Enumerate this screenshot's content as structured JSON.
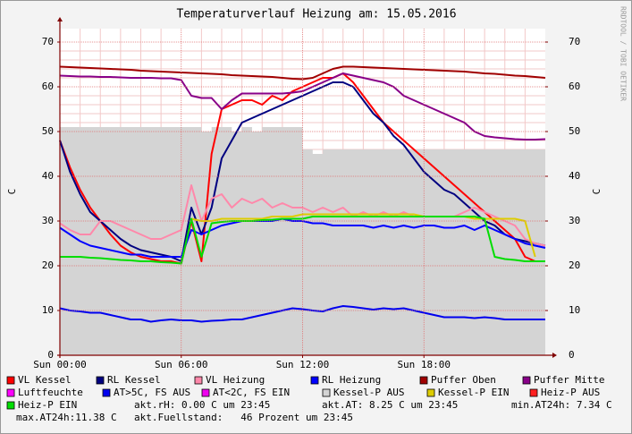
{
  "chart_data": {
    "type": "line",
    "title": "Temperaturverlauf Heizung am: 15.05.2016",
    "y_label": "C",
    "y2_label": "C",
    "watermark": "RRDTOOL / TOBI OETIKER",
    "xlim": [
      0,
      24
    ],
    "xticks": [
      {
        "value": 0,
        "label": "Sun 00:00"
      },
      {
        "value": 6,
        "label": "Sun 06:00"
      },
      {
        "value": 12,
        "label": "Sun 12:00"
      },
      {
        "value": 18,
        "label": "Sun 18:00"
      }
    ],
    "ylim": [
      0,
      73
    ],
    "yticks": [
      0,
      10,
      20,
      30,
      40,
      50,
      60,
      70
    ],
    "y2lim": [
      0,
      73
    ],
    "y2ticks": [
      0,
      10,
      20,
      30,
      40,
      50,
      60,
      70
    ],
    "grid": true,
    "x": [
      0,
      0.5,
      1,
      1.5,
      2,
      2.5,
      3,
      3.5,
      4,
      4.5,
      5,
      5.5,
      6,
      6.5,
      7,
      7.5,
      8,
      8.5,
      9,
      9.5,
      10,
      10.5,
      11,
      11.5,
      12,
      12.5,
      13,
      13.5,
      14,
      14.5,
      15,
      15.5,
      16,
      16.5,
      17,
      17.5,
      18,
      18.5,
      19,
      19.5,
      20,
      20.5,
      21,
      21.5,
      22,
      22.5,
      23,
      23.5,
      24
    ],
    "series": [
      {
        "name": "VL Kessel",
        "color": "#ff0000",
        "values": [
          48,
          42,
          37,
          33,
          30,
          27,
          24.5,
          23,
          22,
          21.5,
          21,
          21,
          20.5,
          30,
          21,
          45,
          55,
          56,
          57,
          57,
          56,
          58,
          57,
          59,
          60,
          61,
          62,
          62,
          63,
          61,
          58,
          55,
          52,
          50,
          48,
          46,
          44,
          42,
          40,
          38,
          36,
          34,
          32,
          30,
          28,
          26,
          22,
          21,
          21
        ]
      },
      {
        "name": "RL Kessel",
        "color": "#000080",
        "values": [
          48,
          41,
          36,
          32,
          30,
          28,
          26,
          24.5,
          23.5,
          23,
          22.5,
          22,
          21,
          33,
          27,
          33,
          44,
          48,
          52,
          53,
          54,
          55,
          56,
          57,
          58,
          59,
          60,
          61,
          61,
          60,
          57,
          54,
          52,
          49,
          47,
          44,
          41,
          39,
          37,
          36,
          34,
          32,
          30,
          29,
          27,
          26,
          25.5,
          25,
          24.5
        ]
      },
      {
        "name": "VL Heizung",
        "color": "#ff88aa",
        "values": [
          29.5,
          28,
          27,
          27,
          30,
          30,
          29,
          28,
          27,
          26,
          26,
          27,
          28,
          38,
          30,
          35,
          36,
          33,
          35,
          34,
          35,
          33,
          34,
          33,
          33,
          32,
          33,
          32,
          33,
          31,
          32,
          31,
          32,
          31,
          32,
          31,
          31,
          31,
          31,
          31,
          32,
          33,
          32,
          31,
          30,
          29,
          26,
          25,
          24.5
        ]
      },
      {
        "name": "RL Heizung",
        "color": "#0000ff",
        "values": [
          28.5,
          27,
          25.5,
          24.5,
          24,
          23.5,
          23,
          22.5,
          22.5,
          22,
          22,
          22,
          22,
          28,
          27,
          28,
          29,
          29.5,
          30,
          30,
          30,
          30,
          30.5,
          30,
          30,
          29.5,
          29.5,
          29,
          29,
          29,
          29,
          28.5,
          29,
          28.5,
          29,
          28.5,
          29,
          29,
          28.5,
          28.5,
          29,
          28,
          29,
          28,
          27,
          26,
          25,
          24.5,
          24
        ]
      },
      {
        "name": "Puffer Oben",
        "color": "#a00000",
        "values": [
          64.5,
          64.4,
          64.3,
          64.2,
          64.1,
          64,
          63.9,
          63.8,
          63.6,
          63.5,
          63.4,
          63.3,
          63.2,
          63.1,
          63,
          62.9,
          62.8,
          62.6,
          62.5,
          62.4,
          62.3,
          62.2,
          62,
          61.8,
          61.7,
          62,
          63,
          64,
          64.5,
          64.5,
          64.4,
          64.3,
          64.2,
          64.1,
          64,
          63.9,
          63.8,
          63.7,
          63.6,
          63.5,
          63.4,
          63.2,
          63,
          62.9,
          62.7,
          62.5,
          62.4,
          62.2,
          62
        ]
      },
      {
        "name": "Puffer Mitte",
        "color": "#880088",
        "values": [
          62.5,
          62.4,
          62.3,
          62.3,
          62.2,
          62.2,
          62.1,
          62,
          62,
          62,
          61.9,
          61.9,
          61.5,
          58,
          57.5,
          57.5,
          55,
          57,
          58.5,
          58.5,
          58.5,
          58.5,
          58.5,
          58.7,
          59,
          60,
          61,
          62,
          63,
          62.5,
          62,
          61.5,
          61,
          60,
          58,
          57,
          56,
          55,
          54,
          53,
          52,
          50,
          49,
          48.7,
          48.5,
          48.3,
          48.2,
          48.2,
          48.3
        ]
      },
      {
        "name": "Luftfeuchte",
        "color": "#ff00ff",
        "values": [
          null,
          null,
          null,
          null,
          null,
          null,
          null,
          null,
          null,
          null,
          null,
          null,
          null,
          null,
          null,
          null,
          null,
          null,
          null,
          null,
          null,
          null,
          null,
          null,
          null,
          null,
          null,
          null,
          null,
          null,
          null,
          null,
          null,
          null,
          null,
          null,
          null,
          null,
          null,
          null,
          null,
          null,
          null,
          null,
          null,
          null,
          null,
          null,
          null
        ]
      },
      {
        "name": "AT>5C, FS AUS",
        "color": "#0000ee",
        "values": [
          10.5,
          10,
          9.8,
          9.5,
          9.5,
          9,
          8.5,
          8,
          8,
          7.5,
          7.8,
          8,
          7.8,
          7.8,
          7.5,
          7.7,
          7.8,
          8,
          8,
          8.5,
          9,
          9.5,
          10,
          10.5,
          10.3,
          10,
          9.8,
          10.5,
          11,
          10.8,
          10.5,
          10.2,
          10.5,
          10.3,
          10.5,
          10,
          9.5,
          9,
          8.5,
          8.5,
          8.5,
          8.3,
          8.5,
          8.3,
          8,
          8,
          8,
          8,
          8
        ]
      },
      {
        "name": "AT<2C, FS EIN",
        "color": "#ee00ee",
        "values": [
          null,
          null,
          null,
          null,
          null,
          null,
          null,
          null,
          null,
          null,
          null,
          null,
          null,
          null,
          null,
          null,
          null,
          null,
          null,
          null,
          null,
          null,
          null,
          null,
          null,
          null,
          null,
          null,
          null,
          null,
          null,
          null,
          null,
          null,
          null,
          null,
          null,
          null,
          null,
          null,
          null,
          null,
          null,
          null,
          null,
          null,
          null,
          null,
          null
        ]
      },
      {
        "name": "Kessel-P AUS",
        "color": "#d4d4d4",
        "style": "area",
        "values": [
          51,
          51,
          51,
          51,
          51,
          51,
          51,
          51,
          51,
          51,
          51,
          51,
          51,
          51,
          50,
          51,
          51,
          50,
          51,
          50,
          51,
          51,
          51,
          51,
          46,
          45,
          46,
          46,
          46,
          46,
          46,
          46,
          46,
          46,
          46,
          46,
          46,
          46,
          46,
          46,
          46,
          46,
          46,
          46,
          46,
          46,
          46,
          46,
          46
        ]
      },
      {
        "name": "Kessel-P EIN",
        "color": "#ddcc00",
        "values": [
          null,
          null,
          null,
          null,
          null,
          null,
          null,
          null,
          null,
          null,
          null,
          null,
          null,
          30.5,
          30,
          30,
          30.5,
          30.5,
          30.5,
          30.5,
          30.5,
          31,
          31,
          31,
          31.5,
          31.5,
          31.5,
          31.5,
          31.5,
          31.5,
          31.5,
          31.5,
          31.5,
          31.5,
          31.5,
          31.5,
          31,
          31,
          31,
          31,
          31,
          30.5,
          30.5,
          30.5,
          30.5,
          30.5,
          30,
          22,
          null
        ]
      },
      {
        "name": "Heiz-P AUS",
        "color": "#ff2020",
        "values": [
          null,
          null,
          null,
          null,
          null,
          null,
          null,
          null,
          null,
          null,
          null,
          null,
          null,
          null,
          null,
          null,
          null,
          null,
          null,
          null,
          null,
          null,
          null,
          null,
          null,
          null,
          null,
          null,
          null,
          null,
          null,
          null,
          null,
          null,
          null,
          null,
          null,
          null,
          null,
          null,
          null,
          null,
          null,
          null,
          null,
          null,
          null,
          null,
          null
        ]
      },
      {
        "name": "Heiz-P EIN",
        "color": "#00dd00",
        "values": [
          22,
          22,
          22,
          21.8,
          21.7,
          21.5,
          21.3,
          21.2,
          21,
          21,
          20.8,
          20.7,
          20.5,
          30.5,
          22,
          29.5,
          29.8,
          30,
          30,
          30,
          30.2,
          30.3,
          30.5,
          30.5,
          30.5,
          31,
          31,
          31,
          31,
          31,
          31,
          31,
          31,
          31,
          31,
          31,
          31,
          31,
          31,
          31,
          31,
          31,
          30.5,
          22,
          21.5,
          21.3,
          21,
          21,
          21
        ]
      }
    ],
    "stats": [
      "akt.rH: 0.00 C um 23:45",
      "akt.AT: 8.25 C um 23:45",
      "min.AT24h: 7.34 C",
      "max.AT24h:11.38 C",
      "akt.Fuellstand:   46 Prozent um 23:45"
    ]
  }
}
